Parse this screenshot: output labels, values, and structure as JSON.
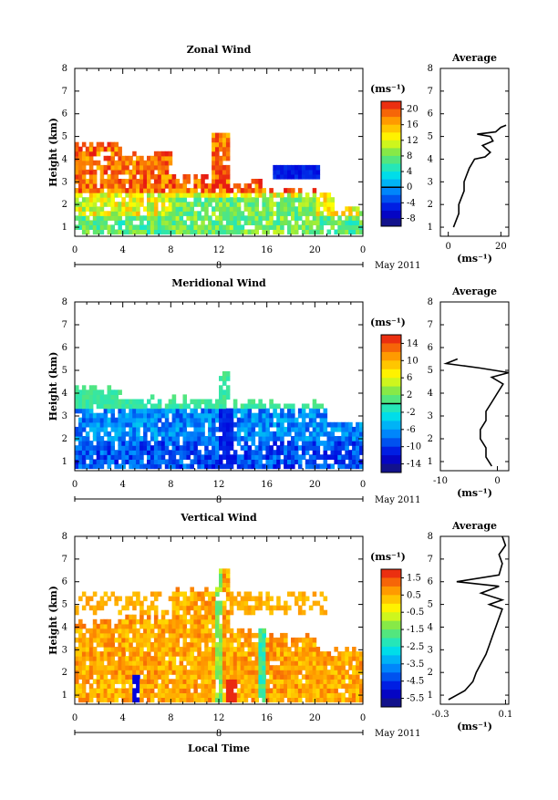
{
  "chart_data": [
    {
      "type": "heatmap",
      "title": "Zonal Wind",
      "ylabel": "Height (km)",
      "xlabel": "",
      "ylim": [
        0.6,
        8
      ],
      "y_ticks": [
        "1",
        "2",
        "3",
        "4",
        "5",
        "6",
        "7",
        "8"
      ],
      "xlim": [
        0,
        24
      ],
      "x_ticks": [
        "0",
        "4",
        "8",
        "12",
        "16",
        "20",
        "0"
      ],
      "date_label": "8",
      "month_label": "May 2011",
      "colorbar": {
        "unit": "(ms⁻¹)",
        "tick_labels": [
          "20",
          "16",
          "12",
          "8",
          "4",
          "0",
          "-4",
          "-8"
        ],
        "tick_values": [
          20,
          16,
          12,
          8,
          4,
          0,
          -4,
          -8
        ],
        "range": [
          -10,
          22
        ],
        "zero_line": 0
      },
      "average_panel": {
        "title": "Average",
        "xlim": [
          -3,
          23
        ],
        "x_ticks": [
          "0",
          "20"
        ],
        "x_tick_values": [
          0,
          20
        ],
        "xlabel": "(ms⁻¹)",
        "profile": [
          [
            2,
            1.0
          ],
          [
            3,
            1.3
          ],
          [
            4,
            1.6
          ],
          [
            4,
            2.0
          ],
          [
            5,
            2.3
          ],
          [
            6,
            2.6
          ],
          [
            6,
            3.0
          ],
          [
            7,
            3.3
          ],
          [
            8,
            3.6
          ],
          [
            10,
            4.0
          ],
          [
            14,
            4.1
          ],
          [
            16,
            4.3
          ],
          [
            13,
            4.6
          ],
          [
            17,
            4.8
          ],
          [
            16,
            5.0
          ],
          [
            11,
            5.1
          ],
          [
            18,
            5.2
          ],
          [
            20,
            5.4
          ],
          [
            22,
            5.5
          ]
        ]
      },
      "image_summary": {
        "coverage_top_km": [
          4.7,
          4.2,
          3.2,
          3.0,
          2.6,
          2.4
        ],
        "dominant_low_values": "2 to 10",
        "dominant_mid_values": "14 to 22",
        "negative_patch": {
          "time": [
            17,
            20
          ],
          "height": [
            3.1,
            3.8
          ],
          "value": -6
        }
      }
    },
    {
      "type": "heatmap",
      "title": "Meridional Wind",
      "ylabel": "Height (km)",
      "xlabel": "",
      "ylim": [
        0.6,
        8
      ],
      "y_ticks": [
        "1",
        "2",
        "3",
        "4",
        "5",
        "6",
        "7",
        "8"
      ],
      "xlim": [
        0,
        24
      ],
      "x_ticks": [
        "0",
        "4",
        "8",
        "12",
        "16",
        "20",
        "0"
      ],
      "date_label": "8",
      "month_label": "May 2011",
      "colorbar": {
        "unit": "(ms⁻¹)",
        "tick_labels": [
          "14",
          "10",
          "6",
          "2",
          "-2",
          "-6",
          "-10",
          "-14"
        ],
        "tick_values": [
          14,
          10,
          6,
          2,
          -2,
          -6,
          -10,
          -14
        ],
        "range": [
          -16,
          16
        ],
        "zero_line": 0
      },
      "average_panel": {
        "title": "Average",
        "xlim": [
          -10,
          2
        ],
        "x_ticks": [
          "-10",
          "0"
        ],
        "x_tick_values": [
          -10,
          0
        ],
        "xlabel": "(ms⁻¹)",
        "profile": [
          [
            -1,
            0.8
          ],
          [
            -2,
            1.2
          ],
          [
            -2,
            1.6
          ],
          [
            -3,
            2.0
          ],
          [
            -3,
            2.4
          ],
          [
            -2,
            2.8
          ],
          [
            -2,
            3.2
          ],
          [
            -1,
            3.6
          ],
          [
            0,
            4.0
          ],
          [
            1,
            4.4
          ],
          [
            -1,
            4.7
          ],
          [
            2,
            4.9
          ],
          [
            -3,
            5.1
          ],
          [
            -9,
            5.3
          ],
          [
            -7,
            5.5
          ]
        ]
      },
      "image_summary": {
        "coverage_top_km": [
          4.2,
          3.8,
          3.7,
          3.6,
          3.5,
          3.4
        ],
        "dominant_values": "-10 to 0"
      }
    },
    {
      "type": "heatmap",
      "title": "Vertical Wind",
      "ylabel": "Height (km)",
      "xlabel": "Local Time",
      "ylim": [
        0.6,
        8
      ],
      "y_ticks": [
        "1",
        "2",
        "3",
        "4",
        "5",
        "6",
        "7",
        "8"
      ],
      "xlim": [
        0,
        24
      ],
      "x_ticks": [
        "0",
        "4",
        "8",
        "12",
        "16",
        "20",
        "0"
      ],
      "date_label": "8",
      "month_label": "May 2011",
      "colorbar": {
        "unit": "(ms⁻¹)",
        "tick_labels": [
          "1.5",
          "0.5",
          "-0.5",
          "-1.5",
          "-2.5",
          "-3.5",
          "-4.5",
          "-5.5"
        ],
        "tick_values": [
          1.5,
          0.5,
          -0.5,
          -1.5,
          -2.5,
          -3.5,
          -4.5,
          -5.5
        ],
        "range": [
          -6,
          2
        ],
        "zero_line": null
      },
      "average_panel": {
        "title": "Average",
        "xlim": [
          -0.3,
          0.12
        ],
        "x_ticks": [
          "-0.3",
          "0.1"
        ],
        "x_tick_values": [
          -0.3,
          0.1
        ],
        "xlabel": "(ms⁻¹)",
        "profile": [
          [
            -0.25,
            0.8
          ],
          [
            -0.15,
            1.2
          ],
          [
            -0.1,
            1.6
          ],
          [
            -0.08,
            2.0
          ],
          [
            -0.05,
            2.4
          ],
          [
            -0.02,
            2.8
          ],
          [
            0.0,
            3.2
          ],
          [
            0.02,
            3.6
          ],
          [
            0.04,
            4.0
          ],
          [
            0.06,
            4.4
          ],
          [
            0.08,
            4.8
          ],
          [
            0.0,
            5.0
          ],
          [
            0.08,
            5.2
          ],
          [
            -0.05,
            5.5
          ],
          [
            0.06,
            5.8
          ],
          [
            -0.2,
            6.0
          ],
          [
            0.06,
            6.3
          ],
          [
            0.08,
            6.8
          ],
          [
            0.06,
            7.2
          ],
          [
            0.1,
            7.6
          ],
          [
            0.08,
            8.0
          ]
        ]
      },
      "image_summary": {
        "coverage_top_km": [
          4.2,
          4.5,
          5.6,
          3.9,
          3.6,
          3.0
        ],
        "dominant_values": "-1.0 to 1.0",
        "strong_updraft": {
          "time": [
            12.5,
            13.5
          ],
          "height": [
            0.8,
            1.8
          ],
          "value": 1.8
        },
        "strong_downdraft": {
          "time": [
            4.8,
            5.2
          ],
          "height": [
            0.8,
            2.0
          ],
          "value": -5.0
        }
      }
    }
  ]
}
